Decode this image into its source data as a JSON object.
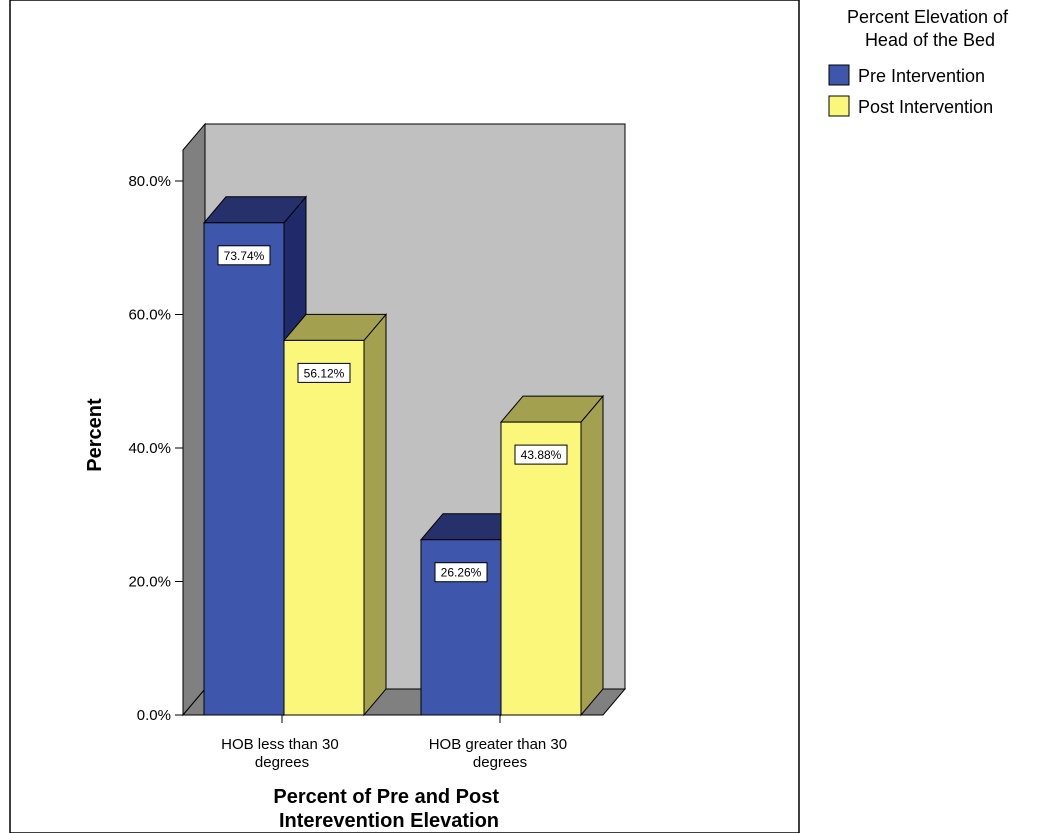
{
  "chart_data": {
    "type": "bar",
    "style": "3d-clustered",
    "categories": [
      "HOB less than 30 degrees",
      "HOB greater than 30 degrees"
    ],
    "category_lines": [
      [
        "HOB less than 30",
        "degrees"
      ],
      [
        "HOB greater than 30",
        "degrees"
      ]
    ],
    "series": [
      {
        "name": "Pre Intervention",
        "values": [
          73.74,
          26.26
        ],
        "labels": [
          "73.74%",
          "26.26%"
        ],
        "color": "#3f56ad"
      },
      {
        "name": "Post Intervention",
        "values": [
          56.12,
          43.88
        ],
        "labels": [
          "56.12%",
          "43.88%"
        ],
        "color": "#fbf77a"
      }
    ],
    "xlabel": [
      "Percent of Pre and Post",
      "Interevention Elevation"
    ],
    "ylabel": "Percent",
    "ylim": [
      0,
      80
    ],
    "yticks": [
      0,
      20,
      40,
      60,
      80
    ],
    "ytick_labels": [
      "0.0%",
      "20.0%",
      "40.0%",
      "60.0%",
      "80.0%"
    ],
    "legend": {
      "title": [
        "Percent Elevation of",
        "Head of the Bed"
      ],
      "placement": "top-right",
      "items": [
        "Pre Intervention",
        "Post Intervention"
      ]
    },
    "colors": {
      "back_wall": "#c0c0c0",
      "side_wall": "#808080",
      "floor": "#808080",
      "plot_frame": "#000000",
      "pre_top": "#26306a",
      "pre_side": "#1f2a6b",
      "post_top": "#a3a04f",
      "post_side": "#a3a04f"
    }
  }
}
